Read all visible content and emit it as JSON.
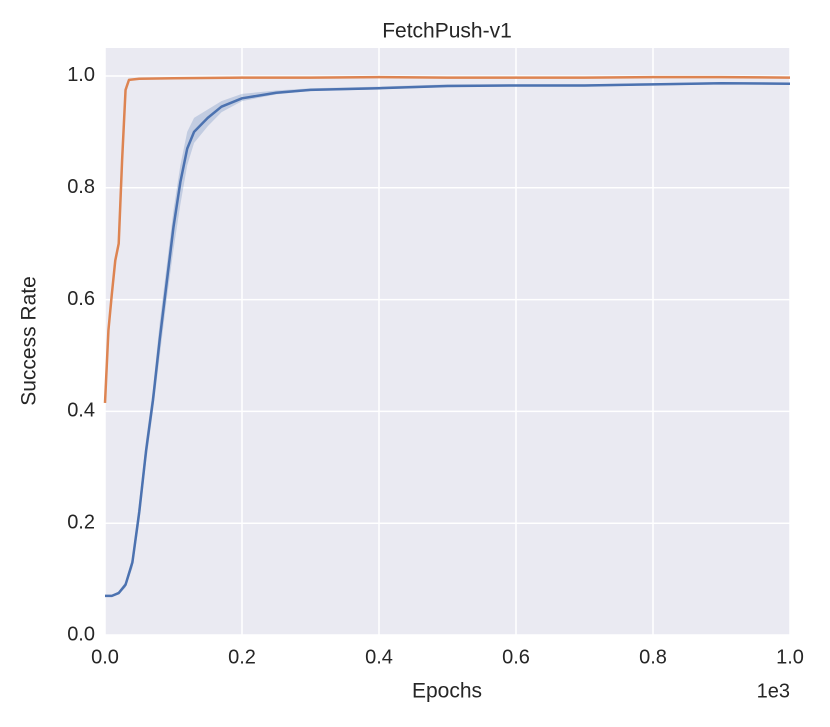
{
  "chart_data": {
    "type": "line",
    "title": "FetchPush-v1",
    "x_label": "Epochs",
    "y_label": "Success Rate",
    "x_offset_label": "1e3",
    "xlim": [
      0,
      1.0
    ],
    "ylim": [
      0,
      1.05
    ],
    "xticks": [
      {
        "value": 0,
        "label": "0.0"
      },
      0.2,
      0.4,
      0.6,
      0.8,
      {
        "value": 1.0,
        "label": "1.0"
      }
    ],
    "yticks": [
      {
        "value": 0,
        "label": "0.0"
      },
      0.2,
      0.4,
      0.6,
      0.8,
      {
        "value": 1.0,
        "label": "1.0"
      }
    ],
    "grid": true,
    "background": "#eaeaf2",
    "series": [
      {
        "color": "#dd8452",
        "x": [
          0,
          0.005,
          0.01,
          0.015,
          0.02,
          0.025,
          0.03,
          0.035,
          0.05,
          0.1,
          0.2,
          0.3,
          0.4,
          0.5,
          0.6,
          0.7,
          0.8,
          0.9,
          1.0
        ],
        "values": [
          0.415,
          0.545,
          0.61,
          0.67,
          0.7,
          0.85,
          0.975,
          0.993,
          0.995,
          0.996,
          0.997,
          0.997,
          0.998,
          0.997,
          0.997,
          0.997,
          0.998,
          0.998,
          0.997
        ]
      },
      {
        "color": "#4c72b0",
        "x": [
          0,
          0.01,
          0.02,
          0.03,
          0.04,
          0.05,
          0.06,
          0.07,
          0.08,
          0.09,
          0.1,
          0.11,
          0.12,
          0.13,
          0.15,
          0.17,
          0.2,
          0.25,
          0.3,
          0.4,
          0.5,
          0.6,
          0.7,
          0.8,
          0.9,
          1.0
        ],
        "values": [
          0.07,
          0.07,
          0.075,
          0.09,
          0.13,
          0.22,
          0.33,
          0.42,
          0.53,
          0.63,
          0.73,
          0.81,
          0.87,
          0.9,
          0.925,
          0.945,
          0.96,
          0.97,
          0.975,
          0.978,
          0.982,
          0.983,
          0.983,
          0.985,
          0.987,
          0.986
        ],
        "lower": [
          0.07,
          0.07,
          0.073,
          0.085,
          0.12,
          0.2,
          0.31,
          0.4,
          0.5,
          0.6,
          0.69,
          0.77,
          0.84,
          0.88,
          0.91,
          0.935,
          0.955,
          0.967,
          0.973,
          0.976,
          0.98,
          0.981,
          0.981,
          0.983,
          0.985,
          0.984
        ],
        "upper": [
          0.07,
          0.072,
          0.078,
          0.095,
          0.14,
          0.24,
          0.35,
          0.44,
          0.56,
          0.66,
          0.76,
          0.84,
          0.9,
          0.925,
          0.94,
          0.955,
          0.968,
          0.974,
          0.978,
          0.981,
          0.985,
          0.985,
          0.985,
          0.987,
          0.989,
          0.988
        ]
      }
    ]
  }
}
